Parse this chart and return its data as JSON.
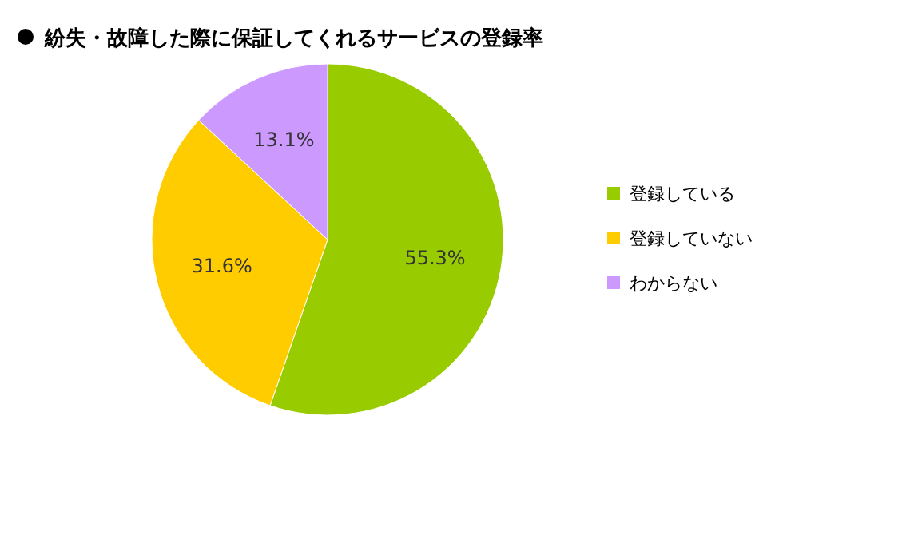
{
  "chart_data": {
    "type": "pie",
    "title": "紛失・故障した際に保証してくれるサービスの登録率",
    "categories": [
      "登録している",
      "登録していない",
      "わからない"
    ],
    "values": [
      55.3,
      31.6,
      13.1
    ],
    "colors": [
      "#99cc00",
      "#ffcc00",
      "#cc99ff"
    ],
    "value_labels": [
      "55.3%",
      "31.6%",
      "13.1%"
    ],
    "legend": "right"
  }
}
